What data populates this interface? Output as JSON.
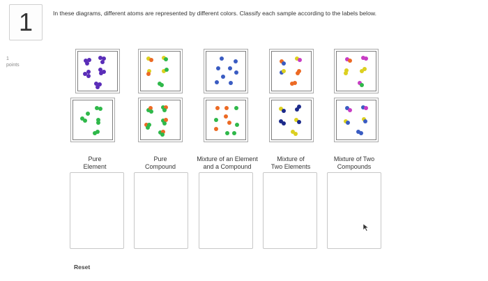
{
  "question": {
    "number": "1",
    "points_value": "1",
    "points_label": "points",
    "instructions": "In these diagrams, different atoms are represented by different colors. Classify each sample according to the labels below."
  },
  "atom_colors": {
    "purple": "#5a2db8",
    "magenta": "#c83cc4",
    "yellow": "#dcd020",
    "green": "#2fb84a",
    "orange": "#ec6a24",
    "blue": "#3a5cc2",
    "navy": "#1c2a8a"
  },
  "categories": [
    {
      "line1": "Pure",
      "line2": "Element"
    },
    {
      "line1": "Pure",
      "line2": "Compound"
    },
    {
      "line1": "Mixture of an Element",
      "line2": "and a Compound"
    },
    {
      "line1": "Mixture of",
      "line2": "Two Elements"
    },
    {
      "line1": "Mixture of Two",
      "line2": "Compounds"
    }
  ],
  "reset_label": "Reset"
}
